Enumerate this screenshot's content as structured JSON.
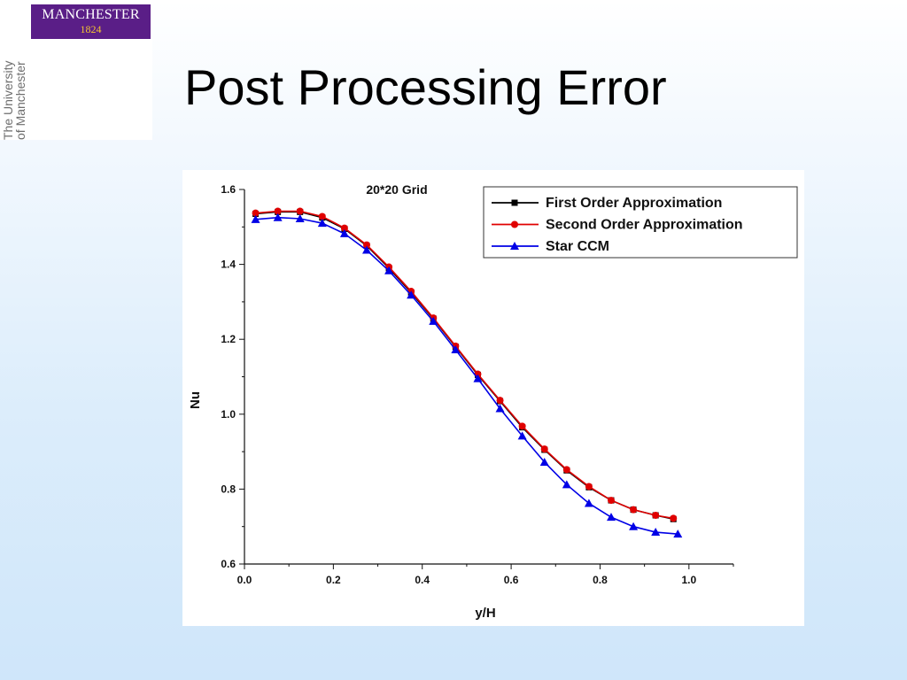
{
  "logo": {
    "name": "MANCHESTER",
    "year": "1824"
  },
  "university": {
    "line1": "The University",
    "line2": "of Manchester"
  },
  "slide": {
    "title": "Post Processing Error"
  },
  "colors": {
    "logo_purple": "#5a1e87",
    "logo_gold": "#f4c430",
    "first_order": "#000000",
    "second_order": "#e00000",
    "star_ccm": "#0000e6"
  },
  "chart_data": {
    "type": "line",
    "title": "20*20 Grid",
    "xlabel": "y/H",
    "ylabel": "Nu",
    "xlim": [
      0.0,
      1.1
    ],
    "ylim": [
      0.6,
      1.6
    ],
    "xticks": [
      "0.0",
      "0.2",
      "0.4",
      "0.6",
      "0.8",
      "1.0"
    ],
    "yticks": [
      "0.6",
      "0.8",
      "1.0",
      "1.2",
      "1.4",
      "1.6"
    ],
    "grid": false,
    "legend_position": "top-right",
    "series": [
      {
        "name": "First Order Approximation",
        "color": "#000000",
        "marker": "square",
        "x": [
          0.025,
          0.075,
          0.125,
          0.175,
          0.225,
          0.275,
          0.325,
          0.375,
          0.425,
          0.475,
          0.525,
          0.575,
          0.625,
          0.675,
          0.725,
          0.775,
          0.825,
          0.875,
          0.925,
          0.965
        ],
        "y": [
          1.535,
          1.54,
          1.54,
          1.525,
          1.495,
          1.45,
          1.39,
          1.325,
          1.255,
          1.18,
          1.105,
          1.035,
          0.965,
          0.905,
          0.85,
          0.805,
          0.77,
          0.745,
          0.73,
          0.72
        ]
      },
      {
        "name": "Second Order Approximation",
        "color": "#e00000",
        "marker": "circle",
        "x": [
          0.025,
          0.075,
          0.125,
          0.175,
          0.225,
          0.275,
          0.325,
          0.375,
          0.425,
          0.475,
          0.525,
          0.575,
          0.625,
          0.675,
          0.725,
          0.775,
          0.825,
          0.875,
          0.925,
          0.965
        ],
        "y": [
          1.537,
          1.542,
          1.542,
          1.528,
          1.497,
          1.452,
          1.393,
          1.328,
          1.257,
          1.182,
          1.107,
          1.037,
          0.968,
          0.907,
          0.852,
          0.807,
          0.77,
          0.745,
          0.73,
          0.722
        ]
      },
      {
        "name": "Star CCM",
        "color": "#0000e6",
        "marker": "triangle",
        "x": [
          0.025,
          0.075,
          0.125,
          0.175,
          0.225,
          0.275,
          0.325,
          0.375,
          0.425,
          0.475,
          0.525,
          0.575,
          0.625,
          0.675,
          0.725,
          0.775,
          0.825,
          0.875,
          0.925,
          0.975
        ],
        "y": [
          1.52,
          1.525,
          1.522,
          1.51,
          1.482,
          1.438,
          1.383,
          1.318,
          1.248,
          1.172,
          1.095,
          1.015,
          0.942,
          0.872,
          0.812,
          0.762,
          0.725,
          0.7,
          0.685,
          0.68
        ]
      }
    ]
  }
}
